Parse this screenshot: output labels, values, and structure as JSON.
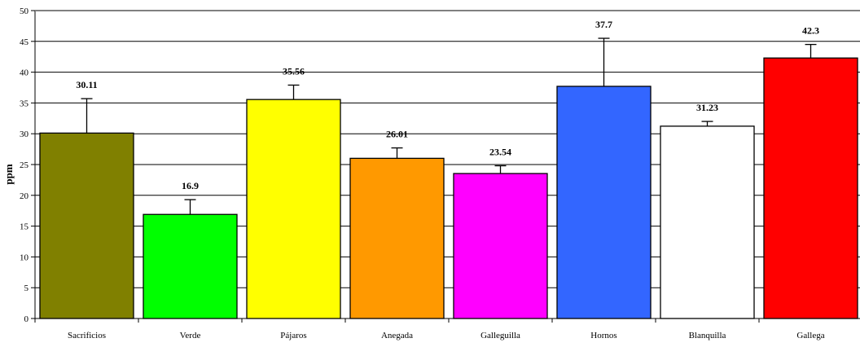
{
  "chart_data": {
    "type": "bar",
    "ylabel": "ppm",
    "ylim": [
      0,
      50
    ],
    "ytick_step": 5,
    "grid": true,
    "categories": [
      "Sacrificios",
      "Verde",
      "Pájaros",
      "Anegada",
      "Galleguilla",
      "Hornos",
      "Blanquilla",
      "Gallega"
    ],
    "values": [
      30.11,
      16.9,
      35.56,
      26.01,
      23.54,
      37.7,
      31.23,
      42.3
    ],
    "data_labels": [
      "30.11",
      "16.9",
      "35.56",
      "26.01",
      "23.54",
      "37.7",
      "31.23",
      "42.3"
    ],
    "error_upper": [
      35.7,
      19.3,
      37.9,
      27.7,
      24.8,
      45.5,
      32.0,
      44.5
    ],
    "colors": [
      "#808000",
      "#00ff00",
      "#ffff00",
      "#ff9900",
      "#ff00ff",
      "#3366ff",
      "#ffffff",
      "#ff0000"
    ]
  }
}
